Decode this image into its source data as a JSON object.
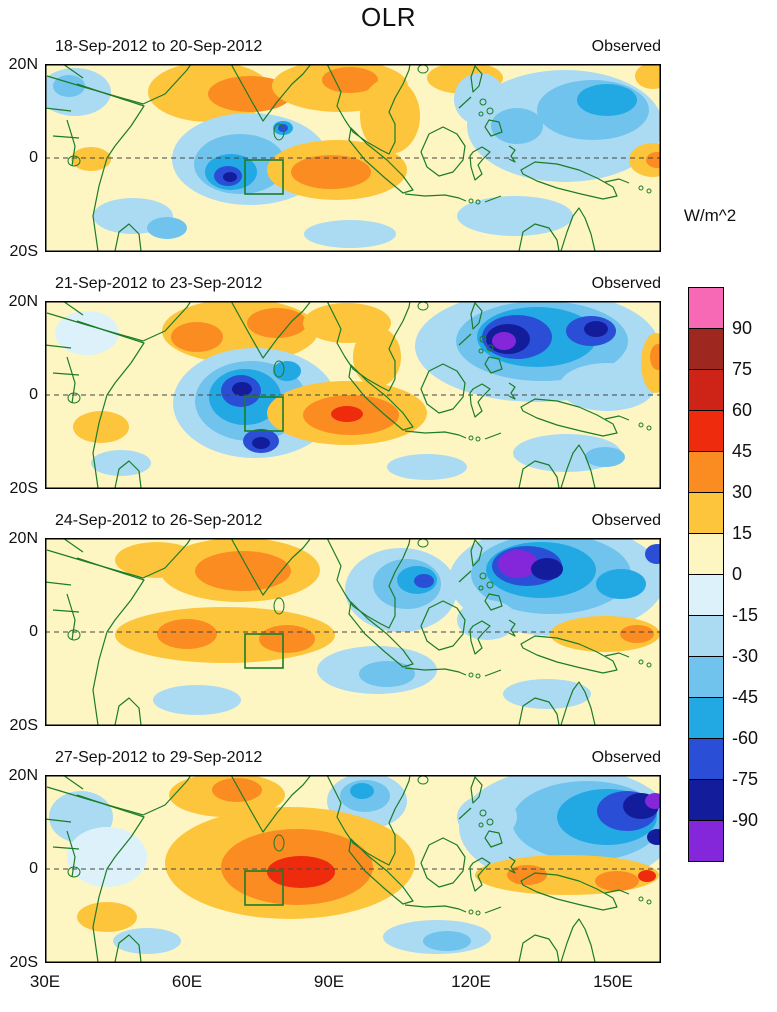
{
  "chart_data": {
    "type": "heatmap",
    "title": "OLR",
    "units": "W/m^2",
    "x_axis": {
      "ticks": [
        "30E",
        "60E",
        "90E",
        "120E",
        "150E"
      ],
      "range": "30E-160E"
    },
    "y_axis": {
      "ticks": [
        "20N",
        "0",
        "20S"
      ],
      "range": "20S-20N"
    },
    "colorbar": {
      "tick_labels": [
        "90",
        "75",
        "60",
        "45",
        "30",
        "15",
        "0",
        "-15",
        "-30",
        "-45",
        "-60",
        "-75",
        "-90"
      ],
      "colors": [
        "#F869B5",
        "#9E2720",
        "#CE2418",
        "#EF2B0E",
        "#FB8C21",
        "#FDC53C",
        "#FDF6C3",
        "#DDF1FA",
        "#ABDAF3",
        "#6FC3EC",
        "#22A9E4",
        "#2A4FD6",
        "#131D9C",
        "#8427DB"
      ]
    },
    "box_region": [
      200,
      96,
      38,
      34
    ],
    "panels": [
      {
        "label": "18-Sep-2012 to 20-Sep-2012",
        "tag": "Observed",
        "features": [
          [
            8,
            30,
            28,
            36,
            24
          ],
          [
            9,
            24,
            22,
            16,
            11
          ],
          [
            5,
            165,
            28,
            62,
            30
          ],
          [
            4,
            205,
            30,
            42,
            18
          ],
          [
            5,
            295,
            22,
            68,
            26
          ],
          [
            4,
            305,
            16,
            28,
            13
          ],
          [
            5,
            420,
            14,
            38,
            16
          ],
          [
            5,
            608,
            12,
            18,
            13
          ],
          [
            8,
            435,
            35,
            26,
            26
          ],
          [
            8,
            520,
            62,
            98,
            56
          ],
          [
            9,
            548,
            46,
            56,
            30
          ],
          [
            10,
            562,
            36,
            30,
            16
          ],
          [
            9,
            472,
            62,
            26,
            18
          ],
          [
            8,
            205,
            95,
            78,
            46
          ],
          [
            9,
            195,
            100,
            46,
            30
          ],
          [
            10,
            186,
            108,
            26,
            18
          ],
          [
            11,
            183,
            112,
            14,
            10
          ],
          [
            12,
            185,
            113,
            7,
            5
          ],
          [
            10,
            238,
            64,
            10,
            7
          ],
          [
            11,
            238,
            64,
            5,
            4
          ],
          [
            5,
            292,
            106,
            70,
            30
          ],
          [
            4,
            286,
            108,
            40,
            17
          ],
          [
            5,
            345,
            52,
            30,
            38
          ],
          [
            5,
            608,
            96,
            24,
            17
          ],
          [
            4,
            612,
            96,
            11,
            8
          ],
          [
            8,
            88,
            152,
            40,
            18
          ],
          [
            9,
            122,
            164,
            20,
            11
          ],
          [
            8,
            305,
            170,
            46,
            14
          ],
          [
            8,
            470,
            152,
            58,
            20
          ],
          [
            5,
            46,
            95,
            20,
            12
          ]
        ]
      },
      {
        "label": "21-Sep-2012 to 23-Sep-2012",
        "tag": "Observed",
        "features": [
          [
            7,
            42,
            32,
            32,
            22
          ],
          [
            5,
            195,
            30,
            78,
            32
          ],
          [
            4,
            152,
            36,
            26,
            15
          ],
          [
            4,
            232,
            22,
            30,
            15
          ],
          [
            5,
            302,
            22,
            44,
            20
          ],
          [
            5,
            332,
            56,
            24,
            30
          ],
          [
            8,
            210,
            102,
            82,
            55
          ],
          [
            9,
            206,
            100,
            56,
            40
          ],
          [
            10,
            200,
            96,
            36,
            28
          ],
          [
            11,
            196,
            90,
            20,
            16
          ],
          [
            12,
            197,
            88,
            10,
            7
          ],
          [
            11,
            216,
            140,
            18,
            12
          ],
          [
            12,
            216,
            142,
            9,
            6
          ],
          [
            10,
            242,
            70,
            14,
            10
          ],
          [
            5,
            302,
            112,
            80,
            32
          ],
          [
            4,
            306,
            114,
            48,
            20
          ],
          [
            3,
            302,
            113,
            16,
            8
          ],
          [
            8,
            492,
            45,
            122,
            56
          ],
          [
            9,
            497,
            40,
            86,
            40
          ],
          [
            10,
            492,
            36,
            60,
            30
          ],
          [
            11,
            472,
            36,
            35,
            22
          ],
          [
            12,
            463,
            38,
            22,
            15
          ],
          [
            13,
            459,
            40,
            12,
            9
          ],
          [
            11,
            546,
            30,
            25,
            15
          ],
          [
            12,
            551,
            28,
            12,
            8
          ],
          [
            8,
            562,
            86,
            48,
            24
          ],
          [
            5,
            611,
            62,
            15,
            30
          ],
          [
            4,
            613,
            56,
            8,
            13
          ],
          [
            8,
            522,
            152,
            54,
            19
          ],
          [
            9,
            560,
            156,
            20,
            10
          ],
          [
            8,
            382,
            166,
            40,
            13
          ],
          [
            5,
            56,
            126,
            28,
            16
          ],
          [
            8,
            76,
            162,
            30,
            13
          ]
        ]
      },
      {
        "label": "24-Sep-2012 to 26-Sep-2012",
        "tag": "Observed",
        "features": [
          [
            5,
            112,
            22,
            42,
            18
          ],
          [
            5,
            195,
            32,
            80,
            32
          ],
          [
            4,
            198,
            33,
            48,
            20
          ],
          [
            8,
            356,
            52,
            56,
            42
          ],
          [
            9,
            362,
            46,
            34,
            25
          ],
          [
            10,
            372,
            42,
            20,
            14
          ],
          [
            11,
            379,
            43,
            10,
            7
          ],
          [
            8,
            512,
            42,
            108,
            56
          ],
          [
            9,
            506,
            36,
            80,
            40
          ],
          [
            10,
            496,
            32,
            55,
            28
          ],
          [
            11,
            482,
            28,
            35,
            20
          ],
          [
            13,
            473,
            26,
            20,
            14
          ],
          [
            12,
            502,
            31,
            16,
            11
          ],
          [
            10,
            576,
            46,
            25,
            15
          ],
          [
            5,
            180,
            97,
            110,
            28
          ],
          [
            4,
            142,
            96,
            30,
            15
          ],
          [
            4,
            242,
            101,
            28,
            14
          ],
          [
            8,
            332,
            132,
            60,
            24
          ],
          [
            9,
            342,
            136,
            28,
            13
          ],
          [
            5,
            560,
            96,
            55,
            18
          ],
          [
            4,
            592,
            96,
            17,
            9
          ],
          [
            8,
            442,
            82,
            30,
            20
          ],
          [
            8,
            152,
            162,
            44,
            15
          ],
          [
            8,
            502,
            156,
            44,
            15
          ],
          [
            11,
            612,
            16,
            12,
            10
          ]
        ]
      },
      {
        "label": "27-Sep-2012 to 29-Sep-2012",
        "tag": "Observed",
        "features": [
          [
            8,
            36,
            42,
            32,
            26
          ],
          [
            7,
            62,
            82,
            40,
            30
          ],
          [
            5,
            182,
            20,
            58,
            22
          ],
          [
            4,
            192,
            15,
            25,
            12
          ],
          [
            8,
            322,
            26,
            40,
            28
          ],
          [
            9,
            320,
            21,
            25,
            16
          ],
          [
            10,
            317,
            16,
            12,
            8
          ],
          [
            5,
            245,
            88,
            125,
            56
          ],
          [
            4,
            252,
            92,
            76,
            38
          ],
          [
            3,
            256,
            97,
            34,
            16
          ],
          [
            8,
            522,
            52,
            108,
            60
          ],
          [
            9,
            542,
            46,
            75,
            40
          ],
          [
            10,
            562,
            42,
            50,
            28
          ],
          [
            11,
            582,
            36,
            30,
            20
          ],
          [
            12,
            596,
            31,
            18,
            13
          ],
          [
            13,
            610,
            26,
            10,
            8
          ],
          [
            8,
            442,
            42,
            30,
            22
          ],
          [
            5,
            522,
            100,
            92,
            20
          ],
          [
            4,
            482,
            100,
            20,
            10
          ],
          [
            4,
            572,
            106,
            22,
            10
          ],
          [
            3,
            602,
            101,
            9,
            6
          ],
          [
            8,
            392,
            162,
            54,
            17
          ],
          [
            9,
            402,
            166,
            24,
            10
          ],
          [
            8,
            102,
            166,
            34,
            13
          ],
          [
            5,
            62,
            142,
            30,
            15
          ],
          [
            12,
            612,
            62,
            10,
            8
          ]
        ]
      }
    ]
  }
}
